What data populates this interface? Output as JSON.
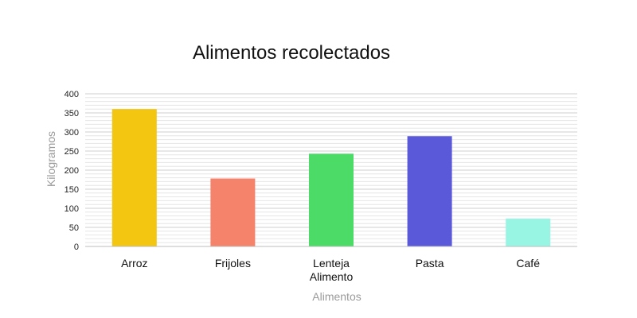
{
  "chart_data": {
    "type": "bar",
    "title": "Alimentos recolectados",
    "xlabel": "Alimentos",
    "ylabel": "Kilogramos",
    "categories": [
      "Arroz",
      "Frijoles",
      "Lenteja Alimento",
      "Pasta",
      "Café"
    ],
    "values": [
      360,
      178,
      243,
      289,
      73
    ],
    "colors": [
      "#f2c611",
      "#f5826a",
      "#4cdb67",
      "#5959d9",
      "#99f5e3"
    ],
    "ylim": [
      0,
      400
    ],
    "yticks": [
      0,
      50,
      100,
      150,
      200,
      250,
      300,
      350,
      400
    ],
    "grid": true,
    "legend": "none"
  }
}
